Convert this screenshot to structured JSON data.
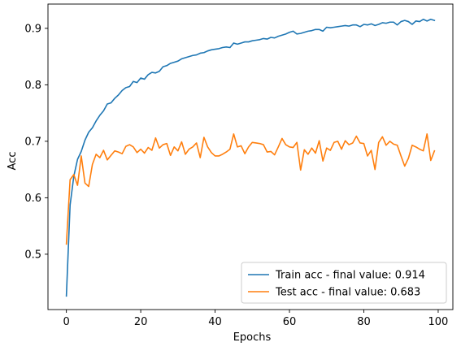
{
  "chart_data": {
    "type": "line",
    "title": "",
    "xlabel": "Epochs",
    "ylabel": "Acc",
    "xlim": [
      -4.95,
      103.95
    ],
    "ylim": [
      0.402,
      0.943
    ],
    "xticks": [
      0,
      20,
      40,
      60,
      80,
      100
    ],
    "yticks": [
      0.5,
      0.6,
      0.7,
      0.8,
      0.9
    ],
    "xtick_labels": [
      "0",
      "20",
      "40",
      "60",
      "80",
      "100"
    ],
    "ytick_labels": [
      "0.5",
      "0.6",
      "0.7",
      "0.8",
      "0.9"
    ],
    "grid": false,
    "legend_position": "lower-right",
    "series": [
      {
        "name": "Train acc - final value: 0.914",
        "color": "#1f77b4",
        "values": [
          0.426,
          0.587,
          0.638,
          0.668,
          0.682,
          0.702,
          0.716,
          0.724,
          0.736,
          0.746,
          0.754,
          0.766,
          0.768,
          0.776,
          0.782,
          0.79,
          0.795,
          0.797,
          0.806,
          0.804,
          0.812,
          0.81,
          0.818,
          0.822,
          0.821,
          0.824,
          0.832,
          0.834,
          0.838,
          0.84,
          0.842,
          0.846,
          0.848,
          0.85,
          0.852,
          0.853,
          0.856,
          0.857,
          0.86,
          0.862,
          0.863,
          0.864,
          0.866,
          0.867,
          0.866,
          0.874,
          0.872,
          0.874,
          0.876,
          0.876,
          0.878,
          0.879,
          0.88,
          0.882,
          0.881,
          0.884,
          0.883,
          0.886,
          0.888,
          0.89,
          0.893,
          0.895,
          0.89,
          0.891,
          0.893,
          0.895,
          0.896,
          0.898,
          0.898,
          0.895,
          0.902,
          0.901,
          0.902,
          0.903,
          0.904,
          0.905,
          0.904,
          0.906,
          0.906,
          0.903,
          0.907,
          0.906,
          0.908,
          0.905,
          0.907,
          0.91,
          0.909,
          0.911,
          0.911,
          0.906,
          0.912,
          0.914,
          0.912,
          0.907,
          0.913,
          0.912,
          0.916,
          0.913,
          0.916,
          0.914
        ]
      },
      {
        "name": "Test acc - final value: 0.683",
        "color": "#ff7f0e",
        "values": [
          0.518,
          0.632,
          0.641,
          0.622,
          0.674,
          0.626,
          0.62,
          0.659,
          0.677,
          0.671,
          0.684,
          0.667,
          0.675,
          0.683,
          0.681,
          0.678,
          0.691,
          0.694,
          0.69,
          0.68,
          0.686,
          0.679,
          0.689,
          0.684,
          0.706,
          0.688,
          0.694,
          0.696,
          0.675,
          0.69,
          0.683,
          0.699,
          0.677,
          0.686,
          0.69,
          0.697,
          0.671,
          0.707,
          0.69,
          0.68,
          0.674,
          0.674,
          0.677,
          0.681,
          0.686,
          0.713,
          0.69,
          0.692,
          0.678,
          0.69,
          0.698,
          0.697,
          0.696,
          0.694,
          0.681,
          0.682,
          0.676,
          0.69,
          0.705,
          0.694,
          0.69,
          0.689,
          0.698,
          0.649,
          0.685,
          0.677,
          0.688,
          0.679,
          0.701,
          0.665,
          0.688,
          0.684,
          0.698,
          0.7,
          0.686,
          0.701,
          0.694,
          0.697,
          0.709,
          0.697,
          0.696,
          0.674,
          0.684,
          0.65,
          0.698,
          0.708,
          0.693,
          0.7,
          0.695,
          0.693,
          0.674,
          0.656,
          0.67,
          0.693,
          0.69,
          0.686,
          0.683,
          0.713,
          0.666,
          0.683
        ]
      }
    ]
  }
}
